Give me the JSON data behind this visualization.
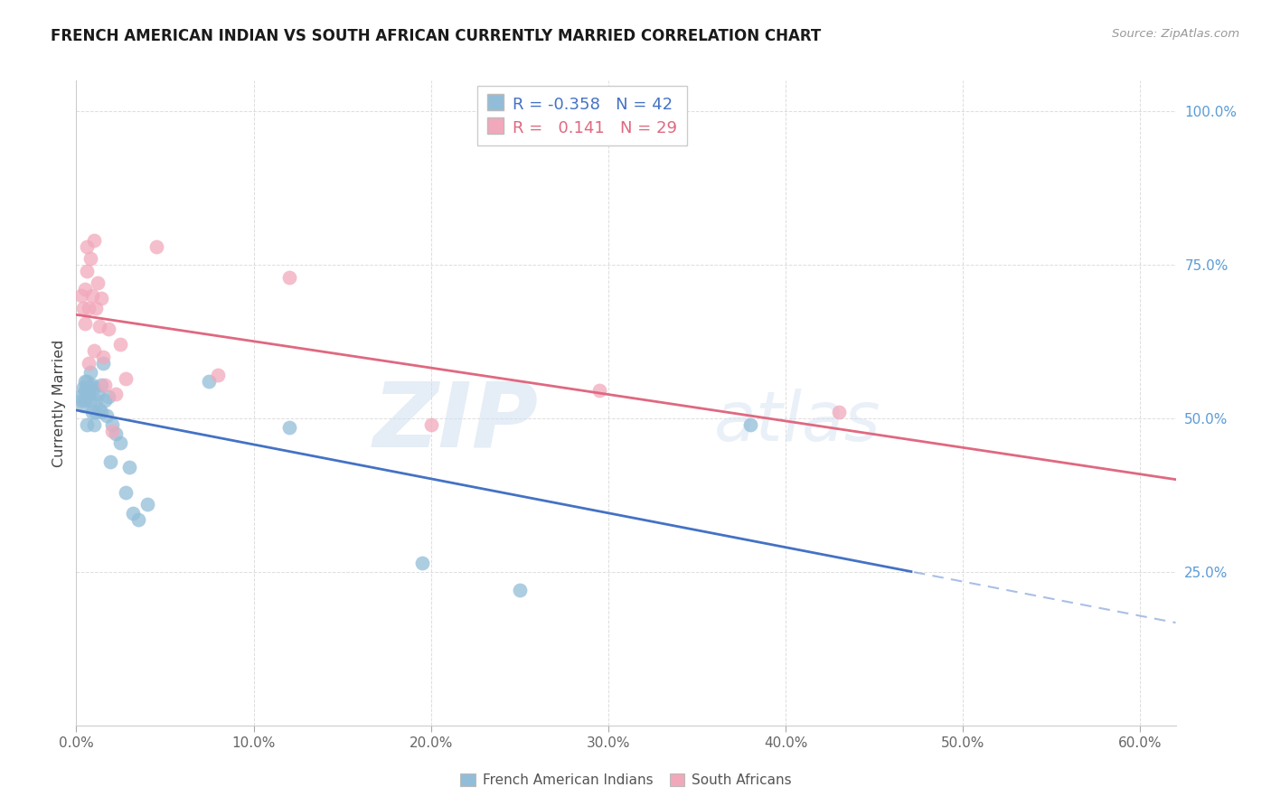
{
  "title": "FRENCH AMERICAN INDIAN VS SOUTH AFRICAN CURRENTLY MARRIED CORRELATION CHART",
  "source": "Source: ZipAtlas.com",
  "ylabel": "Currently Married",
  "xlim": [
    0.0,
    0.62
  ],
  "ylim": [
    0.0,
    1.05
  ],
  "xtick_vals": [
    0.0,
    0.1,
    0.2,
    0.3,
    0.4,
    0.5,
    0.6
  ],
  "xtick_labels": [
    "0.0%",
    "10.0%",
    "20.0%",
    "30.0%",
    "40.0%",
    "50.0%",
    "60.0%"
  ],
  "ytick_vals": [
    0.25,
    0.5,
    0.75,
    1.0
  ],
  "ytick_labels": [
    "25.0%",
    "50.0%",
    "75.0%",
    "100.0%"
  ],
  "blue_R": -0.358,
  "blue_N": 42,
  "pink_R": 0.141,
  "pink_N": 29,
  "blue_color": "#92BDD8",
  "pink_color": "#F2A8BB",
  "blue_line_color": "#4472C4",
  "pink_line_color": "#E06880",
  "watermark_zip": "ZIP",
  "watermark_atlas": "atlas",
  "legend_label_blue": "French American Indians",
  "legend_label_pink": "South Africans",
  "background_color": "#ffffff",
  "grid_color": "#DDDDDD",
  "blue_x": [
    0.002,
    0.003,
    0.004,
    0.004,
    0.005,
    0.005,
    0.005,
    0.006,
    0.006,
    0.006,
    0.007,
    0.007,
    0.008,
    0.008,
    0.009,
    0.009,
    0.01,
    0.01,
    0.011,
    0.011,
    0.012,
    0.013,
    0.014,
    0.014,
    0.015,
    0.016,
    0.017,
    0.018,
    0.019,
    0.02,
    0.022,
    0.025,
    0.028,
    0.03,
    0.032,
    0.035,
    0.04,
    0.075,
    0.12,
    0.195,
    0.25,
    0.38
  ],
  "blue_y": [
    0.535,
    0.53,
    0.55,
    0.52,
    0.56,
    0.545,
    0.53,
    0.56,
    0.55,
    0.49,
    0.55,
    0.54,
    0.575,
    0.53,
    0.555,
    0.51,
    0.55,
    0.49,
    0.53,
    0.51,
    0.54,
    0.515,
    0.555,
    0.51,
    0.59,
    0.53,
    0.505,
    0.535,
    0.43,
    0.49,
    0.475,
    0.46,
    0.38,
    0.42,
    0.345,
    0.335,
    0.36,
    0.56,
    0.485,
    0.265,
    0.22,
    0.49
  ],
  "pink_x": [
    0.003,
    0.004,
    0.005,
    0.005,
    0.006,
    0.006,
    0.007,
    0.007,
    0.008,
    0.009,
    0.01,
    0.01,
    0.011,
    0.012,
    0.013,
    0.014,
    0.015,
    0.016,
    0.018,
    0.02,
    0.022,
    0.025,
    0.028,
    0.045,
    0.08,
    0.12,
    0.2,
    0.295,
    0.43
  ],
  "pink_y": [
    0.7,
    0.68,
    0.71,
    0.655,
    0.78,
    0.74,
    0.68,
    0.59,
    0.76,
    0.7,
    0.79,
    0.61,
    0.68,
    0.72,
    0.65,
    0.695,
    0.6,
    0.555,
    0.645,
    0.48,
    0.54,
    0.62,
    0.565,
    0.78,
    0.57,
    0.73,
    0.49,
    0.545,
    0.51
  ]
}
